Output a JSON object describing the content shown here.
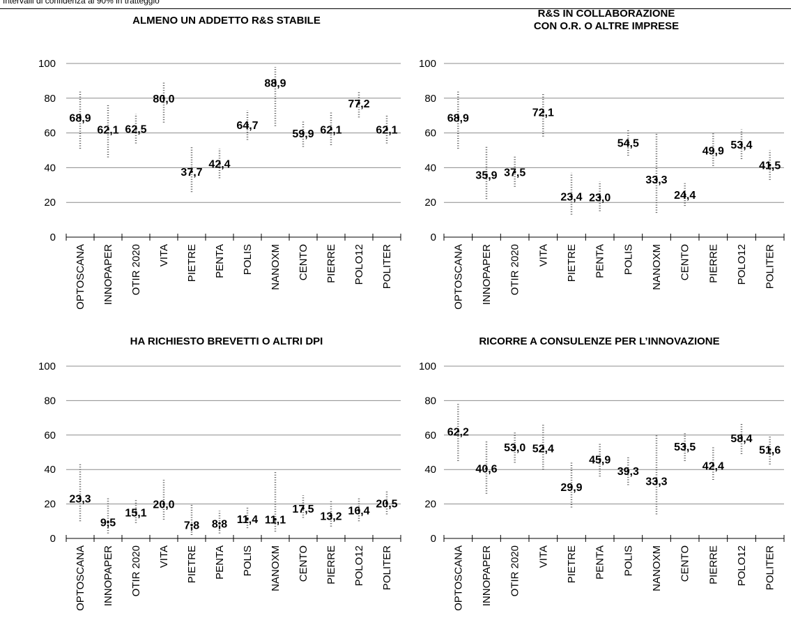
{
  "note": "Intervalli di confidenza al 90% in tratteggio",
  "chart_data": [
    {
      "type": "scatter",
      "title": "ALMENO UN ADDETTO R&S STABILE",
      "subtitle": "",
      "ylim": [
        0,
        100
      ],
      "yticks": [
        "0",
        "20",
        "40",
        "60",
        "80",
        "100"
      ],
      "grid": true,
      "categories": [
        "OPTOSCANA",
        "INNOPAPER",
        "OTIR 2020",
        "VITA",
        "PIETRE",
        "PENTA",
        "POLIS",
        "NANOXM",
        "CENTO",
        "PIERRE",
        "POLO12",
        "POLITER"
      ],
      "values": [
        68.9,
        62.1,
        62.5,
        80.0,
        37.7,
        42.4,
        64.7,
        88.9,
        59.9,
        62.1,
        77.2,
        62.1
      ],
      "labels": [
        "68,9",
        "62,1",
        "62,5",
        "80,0",
        "37,7",
        "42,4",
        "64,7",
        "88,9",
        "59,9",
        "62,1",
        "77,2",
        "62,1"
      ],
      "ci_low": [
        51,
        46,
        54,
        66,
        26,
        34,
        56,
        64,
        52,
        53,
        69,
        54
      ],
      "ci_high": [
        84,
        76,
        71,
        89,
        52,
        51,
        73,
        98,
        67,
        72,
        84,
        70
      ]
    },
    {
      "type": "scatter",
      "title": "R&S IN COLLABORAZIONE",
      "subtitle": "CON O.R. O ALTRE IMPRESE",
      "ylim": [
        0,
        100
      ],
      "yticks": [
        "0",
        "20",
        "40",
        "60",
        "80",
        "100"
      ],
      "grid": true,
      "categories": [
        "OPTOSCANA",
        "INNOPAPER",
        "OTIR 2020",
        "VITA",
        "PIETRE",
        "PENTA",
        "POLIS",
        "NANOXM",
        "CENTO",
        "PIERRE",
        "POLO12",
        "POLITER"
      ],
      "values": [
        68.9,
        35.9,
        37.5,
        72.1,
        23.4,
        23.0,
        54.5,
        33.3,
        24.4,
        49.9,
        53.4,
        41.5
      ],
      "labels": [
        "68,9",
        "35,9",
        "37,5",
        "72,1",
        "23,4",
        "23,0",
        "54,5",
        "33,3",
        "24,4",
        "49,9",
        "53,4",
        "41,5"
      ],
      "ci_low": [
        51,
        22,
        29,
        58,
        13,
        15,
        47,
        14,
        18,
        41,
        45,
        33
      ],
      "ci_high": [
        84,
        52,
        47,
        83,
        37,
        32,
        62,
        60,
        31,
        60,
        62,
        50
      ]
    },
    {
      "type": "scatter",
      "title": "HA RICHIESTO BREVETTI O ALTRI DPI",
      "subtitle": "",
      "ylim": [
        0,
        100
      ],
      "yticks": [
        "0",
        "20",
        "40",
        "60",
        "80",
        "100"
      ],
      "grid": true,
      "categories": [
        "OPTOSCANA",
        "INNOPAPER",
        "OTIR 2020",
        "VITA",
        "PIETRE",
        "PENTA",
        "POLIS",
        "NANOXM",
        "CENTO",
        "PIERRE",
        "POLO12",
        "POLITER"
      ],
      "values": [
        23.3,
        9.5,
        15.1,
        20.0,
        7.8,
        8.8,
        11.4,
        11.1,
        17.5,
        13.2,
        16.4,
        20.5
      ],
      "labels": [
        "23,3",
        "9,5",
        "15,1",
        "20,0",
        "7,8",
        "8,8",
        "11,4",
        "11,1",
        "17,5",
        "13,2",
        "16,4",
        "20,5"
      ],
      "ci_low": [
        10,
        3,
        9,
        11,
        2,
        3,
        6,
        4,
        12,
        7,
        10,
        14
      ],
      "ci_high": [
        44,
        24,
        23,
        34,
        20,
        16,
        18,
        39,
        25,
        22,
        24,
        28
      ]
    },
    {
      "type": "scatter",
      "title": "RICORRE A CONSULENZE PER L’INNOVAZIONE",
      "subtitle": "",
      "ylim": [
        0,
        100
      ],
      "yticks": [
        "0",
        "20",
        "40",
        "60",
        "80",
        "100"
      ],
      "grid": true,
      "categories": [
        "OPTOSCANA",
        "INNOPAPER",
        "OTIR 2020",
        "VITA",
        "PIETRE",
        "PENTA",
        "POLIS",
        "NANOXM",
        "CENTO",
        "PIERRE",
        "POLO12",
        "POLITER"
      ],
      "values": [
        62.2,
        40.6,
        53.0,
        52.4,
        29.9,
        45.9,
        39.3,
        33.3,
        53.5,
        42.4,
        58.4,
        51.6
      ],
      "labels": [
        "62,2",
        "40,6",
        "53,0",
        "52,4",
        "29,9",
        "45,9",
        "39,3",
        "33,3",
        "53,5",
        "42,4",
        "58,4",
        "51,6"
      ],
      "ci_low": [
        45,
        26,
        44,
        40,
        18,
        36,
        31,
        14,
        45,
        34,
        49,
        43
      ],
      "ci_high": [
        78,
        57,
        62,
        66,
        44,
        55,
        48,
        60,
        62,
        53,
        67,
        60
      ]
    }
  ]
}
